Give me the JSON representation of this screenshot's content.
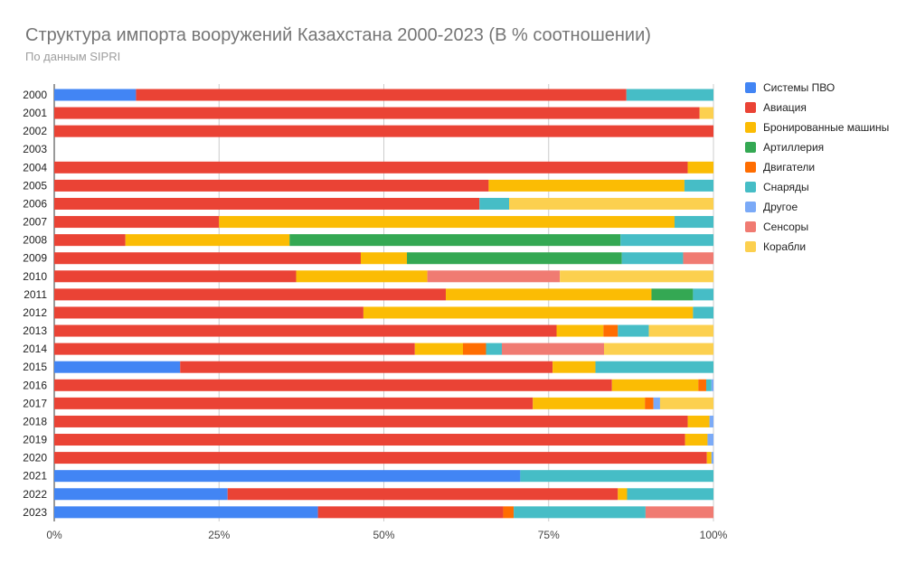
{
  "chart_data": {
    "type": "bar",
    "orientation": "horizontal",
    "stacked": "percent",
    "title": "Структура импорта вооружений Казахстана 2000-2023 (В % соотношении)",
    "subtitle": "По данным SIPRI",
    "xlabel": "",
    "ylabel": "",
    "xlim": [
      0,
      100
    ],
    "x_ticks": [
      "0%",
      "25%",
      "50%",
      "75%",
      "100%"
    ],
    "grid": true,
    "legend_position": "right",
    "categories": [
      "2000",
      "2001",
      "2002",
      "2003",
      "2004",
      "2005",
      "2006",
      "2007",
      "2008",
      "2009",
      "2010",
      "2011",
      "2012",
      "2013",
      "2014",
      "2015",
      "2016",
      "2017",
      "2018",
      "2019",
      "2020",
      "2021",
      "2022",
      "2023"
    ],
    "series": [
      {
        "name": "Системы ПВО",
        "color": "#4285f4",
        "values": [
          12.4,
          0,
          0,
          0,
          0,
          0,
          0,
          0,
          0,
          0,
          0,
          0,
          0,
          0,
          0,
          19.1,
          0,
          0,
          0,
          0,
          0,
          70.7,
          26.3,
          40.0
        ]
      },
      {
        "name": "Авиация",
        "color": "#ea4335",
        "values": [
          74.4,
          97.9,
          100,
          0,
          96.1,
          65.9,
          64.5,
          25.0,
          10.8,
          46.5,
          36.7,
          59.4,
          46.9,
          76.2,
          54.7,
          56.5,
          84.6,
          72.6,
          96.1,
          95.7,
          99.0,
          0,
          59.2,
          28.1
        ]
      },
      {
        "name": "Бронированные машины",
        "color": "#fbbc04",
        "values": [
          0,
          0,
          0,
          0,
          3.9,
          29.7,
          0,
          69.1,
          24.9,
          7.0,
          19.9,
          31.2,
          50.0,
          7.1,
          7.3,
          6.5,
          13.1,
          17.0,
          3.3,
          3.4,
          0.7,
          0,
          1.4,
          0
        ]
      },
      {
        "name": "Артиллерия",
        "color": "#34a853",
        "values": [
          0,
          0,
          0,
          0,
          0,
          0,
          0,
          0,
          50.2,
          32.6,
          0,
          6.3,
          0,
          0,
          0,
          0,
          0,
          0,
          0,
          0,
          0,
          0,
          0,
          0
        ]
      },
      {
        "name": "Двигатели",
        "color": "#ff6d01",
        "values": [
          0,
          0,
          0,
          0,
          0,
          0,
          0,
          0,
          0,
          0,
          0,
          0,
          0,
          2.2,
          3.5,
          0,
          1.2,
          1.3,
          0,
          0,
          0,
          0,
          0,
          1.6
        ]
      },
      {
        "name": "Снаряды",
        "color": "#46bdc6",
        "values": [
          13.2,
          0,
          0,
          0,
          0,
          4.4,
          4.5,
          5.9,
          14.1,
          9.3,
          0,
          3.1,
          3.1,
          4.7,
          2.4,
          17.9,
          0.8,
          0,
          0,
          0,
          0,
          29.3,
          13.1,
          20.0
        ]
      },
      {
        "name": "Другое",
        "color": "#7baaf7",
        "values": [
          0,
          0,
          0,
          0,
          0,
          0,
          0,
          0,
          0,
          0,
          0,
          0,
          0,
          0,
          0,
          0,
          0.3,
          1.0,
          0.6,
          0.9,
          0.3,
          0,
          0,
          0
        ]
      },
      {
        "name": "Сенсоры",
        "color": "#f07b72",
        "values": [
          0,
          0,
          0,
          0,
          0,
          0,
          0,
          0,
          0,
          4.6,
          20.1,
          0,
          0,
          0,
          15.5,
          0,
          0,
          0,
          0,
          0,
          0,
          0,
          0,
          10.3
        ]
      },
      {
        "name": "Корабли",
        "color": "#fcd04f",
        "values": [
          0,
          2.1,
          0,
          0,
          0,
          0,
          31.0,
          0,
          0,
          0,
          23.3,
          0,
          0,
          9.8,
          16.6,
          0,
          0,
          8.1,
          0,
          0,
          0,
          0,
          0,
          0
        ]
      }
    ]
  }
}
